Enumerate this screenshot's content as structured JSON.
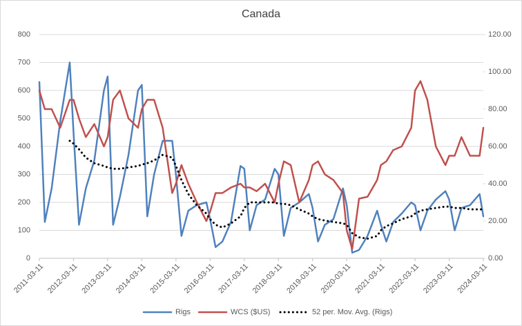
{
  "chart_data": {
    "type": "line",
    "title": "Canada",
    "x": [
      2011.19,
      2011.35,
      2011.55,
      2011.8,
      2012.08,
      2012.19,
      2012.35,
      2012.55,
      2012.8,
      2013.08,
      2013.19,
      2013.35,
      2013.55,
      2013.8,
      2014.08,
      2014.19,
      2014.35,
      2014.55,
      2014.8,
      2015.08,
      2015.19,
      2015.35,
      2015.55,
      2015.8,
      2016.08,
      2016.19,
      2016.35,
      2016.55,
      2016.8,
      2017.08,
      2017.19,
      2017.35,
      2017.55,
      2017.8,
      2018.08,
      2018.19,
      2018.35,
      2018.55,
      2018.8,
      2019.08,
      2019.19,
      2019.35,
      2019.55,
      2019.8,
      2020.08,
      2020.19,
      2020.35,
      2020.55,
      2020.8,
      2021.08,
      2021.19,
      2021.35,
      2021.55,
      2021.8,
      2022.08,
      2022.19,
      2022.35,
      2022.55,
      2022.8,
      2023.08,
      2023.19,
      2023.35,
      2023.55,
      2023.8,
      2024.08,
      2024.19
    ],
    "series": [
      {
        "name": "Rigs",
        "color": "#4f81bd",
        "style": "solid",
        "values": [
          630,
          130,
          250,
          490,
          700,
          450,
          120,
          250,
          350,
          600,
          650,
          120,
          220,
          370,
          600,
          620,
          150,
          300,
          420,
          420,
          300,
          80,
          170,
          190,
          200,
          140,
          40,
          60,
          130,
          330,
          320,
          100,
          190,
          210,
          320,
          300,
          80,
          180,
          200,
          230,
          180,
          60,
          120,
          140,
          250,
          190,
          20,
          30,
          80,
          170,
          120,
          60,
          130,
          160,
          200,
          190,
          100,
          170,
          210,
          240,
          210,
          100,
          180,
          190,
          230,
          150
        ]
      },
      {
        "name": "WCS ($US)",
        "color": "#c0504d",
        "style": "solid",
        "axis": "y2",
        "values": [
          90,
          80,
          80,
          70,
          85,
          85,
          75,
          65,
          72,
          60,
          65,
          85,
          90,
          75,
          70,
          80,
          85,
          85,
          70,
          35,
          40,
          50,
          40,
          30,
          20,
          25,
          35,
          35,
          38,
          40,
          38,
          38,
          36,
          40,
          30,
          40,
          52,
          50,
          30,
          42,
          50,
          52,
          45,
          42,
          35,
          15,
          5,
          32,
          33,
          42,
          50,
          52,
          58,
          60,
          70,
          90,
          95,
          85,
          60,
          50,
          55,
          55,
          65,
          55,
          55,
          70
        ]
      },
      {
        "name": "52 per. Mov. Avg. (Rigs)",
        "color": "#000000",
        "style": "dotted",
        "values": [
          null,
          null,
          null,
          null,
          420,
          410,
          390,
          360,
          340,
          330,
          325,
          320,
          320,
          325,
          330,
          335,
          340,
          350,
          370,
          360,
          330,
          280,
          230,
          190,
          160,
          140,
          120,
          110,
          125,
          150,
          180,
          200,
          200,
          200,
          200,
          195,
          195,
          190,
          175,
          160,
          150,
          140,
          135,
          130,
          125,
          120,
          90,
          75,
          70,
          80,
          100,
          115,
          125,
          140,
          150,
          160,
          170,
          175,
          180,
          185,
          185,
          180,
          180,
          175,
          175,
          175
        ]
      }
    ],
    "xlim": [
      2011.19,
      2024.19
    ],
    "xticks": [
      {
        "value": 2011.19,
        "label": "2011-03-11"
      },
      {
        "value": 2012.19,
        "label": "2012-03-11"
      },
      {
        "value": 2013.19,
        "label": "2013-03-11"
      },
      {
        "value": 2014.19,
        "label": "2014-03-11"
      },
      {
        "value": 2015.19,
        "label": "2015-03-11"
      },
      {
        "value": 2016.19,
        "label": "2016-03-11"
      },
      {
        "value": 2017.19,
        "label": "2017-03-11"
      },
      {
        "value": 2018.19,
        "label": "2018-03-11"
      },
      {
        "value": 2019.19,
        "label": "2019-03-11"
      },
      {
        "value": 2020.19,
        "label": "2020-03-11"
      },
      {
        "value": 2021.19,
        "label": "2021-03-11"
      },
      {
        "value": 2022.19,
        "label": "2022-03-11"
      },
      {
        "value": 2023.19,
        "label": "2023-03-11"
      },
      {
        "value": 2024.19,
        "label": "2024-03-11"
      }
    ],
    "ylim": [
      0,
      800
    ],
    "yticks": [
      0,
      100,
      200,
      300,
      400,
      500,
      600,
      700,
      800
    ],
    "y2lim": [
      0,
      120
    ],
    "y2ticks": [
      {
        "value": 0,
        "label": "0.00"
      },
      {
        "value": 20,
        "label": "20.00"
      },
      {
        "value": 40,
        "label": "40.00"
      },
      {
        "value": 60,
        "label": "60.00"
      },
      {
        "value": 80,
        "label": "80.00"
      },
      {
        "value": 100,
        "label": "100.00"
      },
      {
        "value": 120,
        "label": "120.00"
      }
    ],
    "grid": true,
    "legend": "bottom"
  }
}
